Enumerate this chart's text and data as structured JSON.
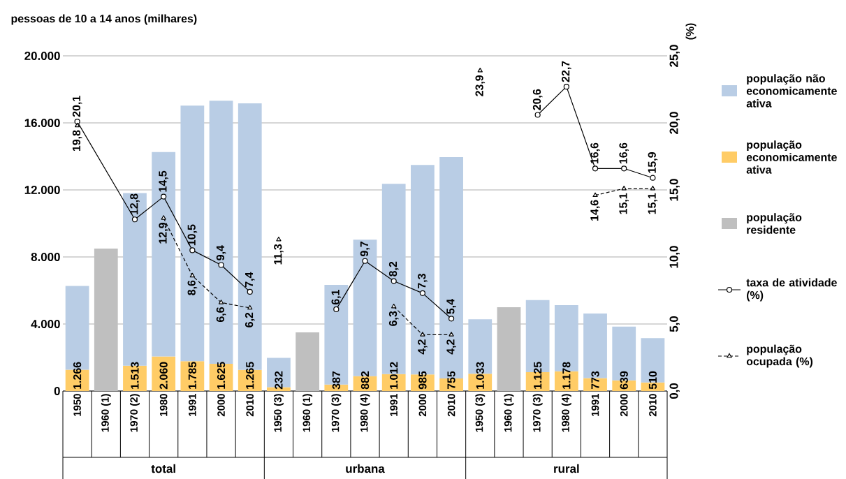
{
  "chart_data": {
    "type": "bar",
    "stacked": true,
    "ylabel": "pessoas de 10 a 14 anos (milhares)",
    "y2label": "(%)",
    "categories": [
      "1950",
      "1960 (1)",
      "1970 (2)",
      "1980",
      "1991",
      "2000",
      "2010",
      "1950 (3)",
      "1960 (1)",
      "1970 (3)",
      "1980 (4)",
      "1991",
      "2000",
      "2010",
      "1950 (3)",
      "1960 (1)",
      "1970 (3)",
      "1980 (4)",
      "1991",
      "2000",
      "2010"
    ],
    "annotations": [
      "total",
      "urbana",
      "rural"
    ],
    "ylim": [
      0,
      20000
    ],
    "yticks": [
      0,
      {
        "value": 4000,
        "label": "4.000"
      },
      {
        "value": 8000,
        "label": "8.000"
      },
      {
        "value": 12000,
        "label": "12.000"
      },
      {
        "value": 16000,
        "label": "16.000"
      },
      {
        "value": 20000,
        "label": "20.000"
      }
    ],
    "y2lim": [
      0,
      25
    ],
    "y2ticks": [
      {
        "value": 0,
        "label": "0,0"
      },
      {
        "value": 5,
        "label": "5,0"
      },
      {
        "value": 10,
        "label": "10,0"
      },
      {
        "value": 15,
        "label": "15,0"
      },
      {
        "value": 20,
        "label": "20,0"
      },
      {
        "value": 25,
        "label": "25,0"
      }
    ],
    "grid": "y",
    "legend": "right",
    "series": [
      {
        "name": "população economicamente ativa",
        "type": "bar",
        "color": "#ffcc66",
        "values": [
          1266,
          null,
          1513,
          2060,
          1785,
          1625,
          1265,
          232,
          null,
          387,
          882,
          1012,
          985,
          755,
          1033,
          null,
          1125,
          1178,
          773,
          639,
          510
        ],
        "value_labels": [
          "1.266",
          null,
          "1.513",
          "2.060",
          "1.785",
          "1.625",
          "1.265",
          "232",
          null,
          "387",
          "882",
          "1.012",
          "985",
          "755",
          "1.033",
          null,
          "1.125",
          "1.178",
          "773",
          "639",
          "510"
        ]
      },
      {
        "name": "população não economicamente ativa",
        "type": "bar",
        "color": "#b9cde5",
        "values": [
          5000,
          null,
          10300,
          12200,
          15250,
          15700,
          15900,
          1750,
          null,
          5950,
          8150,
          11350,
          12500,
          13200,
          3250,
          null,
          4300,
          3950,
          3850,
          3200,
          2650
        ]
      },
      {
        "name": "população residente",
        "type": "bar",
        "color": "#bfbfbf",
        "values": [
          null,
          8500,
          null,
          null,
          null,
          null,
          null,
          null,
          3500,
          null,
          null,
          null,
          null,
          null,
          null,
          5000,
          null,
          null,
          null,
          null,
          null
        ]
      },
      {
        "name": "taxa de atividade (%)",
        "type": "line",
        "axis": "y2",
        "color": "#000000",
        "marker": "circle",
        "line_style": "solid",
        "values": [
          20.1,
          null,
          12.8,
          14.5,
          10.5,
          9.4,
          7.4,
          null,
          null,
          null,
          null,
          null,
          null,
          null,
          null,
          null,
          null,
          null,
          null,
          null,
          null
        ],
        "value_labels": [
          "20,1",
          null,
          "12,8",
          "14,5",
          "10,5",
          "9,4",
          "7,4",
          null,
          null,
          null,
          null,
          null,
          null,
          null,
          null,
          null,
          null,
          null,
          null,
          null,
          null
        ]
      },
      {
        "type": "line",
        "axis": "y2",
        "color": "#000000",
        "marker": "circle",
        "line_style": "solid",
        "values": [
          null,
          null,
          null,
          null,
          null,
          null,
          null,
          null,
          null,
          6.1,
          9.7,
          8.2,
          7.3,
          5.4,
          null,
          null,
          null,
          null,
          null,
          null,
          null
        ],
        "value_labels": [
          null,
          null,
          null,
          null,
          null,
          null,
          null,
          null,
          null,
          "6,1",
          "9,7",
          "8,2",
          "7,3",
          "5,4",
          null,
          null,
          null,
          null,
          null,
          null,
          null
        ]
      },
      {
        "type": "line",
        "axis": "y2",
        "color": "#000000",
        "marker": "circle",
        "line_style": "solid",
        "values": [
          null,
          null,
          null,
          null,
          null,
          null,
          null,
          null,
          null,
          null,
          null,
          null,
          null,
          null,
          null,
          null,
          20.6,
          22.7,
          16.6,
          16.6,
          15.9
        ],
        "value_labels": [
          null,
          null,
          null,
          null,
          null,
          null,
          null,
          null,
          null,
          null,
          null,
          null,
          null,
          null,
          null,
          null,
          "20,6",
          "22,7",
          "16,6",
          "16,6",
          "15,9"
        ]
      },
      {
        "name": "população ocupada (%)",
        "type": "line",
        "axis": "y2",
        "color": "#000000",
        "marker": "triangle",
        "line_style": "dashed",
        "values": [
          null,
          null,
          null,
          12.9,
          8.6,
          6.6,
          6.2,
          null,
          null,
          null,
          null,
          null,
          null,
          null,
          null,
          null,
          null,
          null,
          null,
          null,
          null
        ],
        "value_labels": [
          null,
          null,
          null,
          "12,9",
          "8,6",
          "6,6",
          "6,2",
          null,
          null,
          null,
          null,
          null,
          null,
          null,
          null,
          null,
          null,
          null,
          null,
          null,
          null
        ]
      },
      {
        "type": "line",
        "axis": "y2",
        "color": "#000000",
        "marker": "triangle",
        "line_style": "dashed",
        "values": [
          null,
          null,
          null,
          null,
          null,
          null,
          null,
          null,
          null,
          null,
          null,
          6.3,
          4.2,
          4.2,
          null,
          null,
          null,
          null,
          null,
          null,
          null
        ],
        "value_labels": [
          null,
          null,
          null,
          null,
          null,
          null,
          null,
          null,
          null,
          null,
          null,
          "6,3",
          "4,2",
          "4,2",
          null,
          null,
          null,
          null,
          null,
          null,
          null
        ]
      },
      {
        "type": "line",
        "axis": "y2",
        "color": "#000000",
        "marker": "triangle",
        "line_style": "dashed",
        "values": [
          null,
          null,
          null,
          null,
          null,
          null,
          null,
          null,
          null,
          null,
          null,
          null,
          null,
          null,
          null,
          null,
          null,
          null,
          14.6,
          15.1,
          15.1
        ],
        "value_labels": [
          null,
          null,
          null,
          null,
          null,
          null,
          null,
          null,
          null,
          null,
          null,
          null,
          null,
          null,
          null,
          null,
          null,
          null,
          "14,6",
          "15,1",
          "15,1"
        ]
      },
      {
        "type": "scatter",
        "axis": "y2",
        "color": "#000000",
        "marker": "triangle",
        "values": [
          19.8,
          null,
          null,
          null,
          null,
          null,
          null,
          11.3,
          null,
          null,
          null,
          null,
          null,
          null,
          23.9,
          null,
          null,
          null,
          null,
          null,
          null
        ],
        "value_labels": [
          "19,8",
          null,
          null,
          null,
          null,
          null,
          null,
          "11,3",
          null,
          null,
          null,
          null,
          null,
          null,
          "23,9",
          null,
          null,
          null,
          null,
          null,
          null
        ]
      }
    ]
  }
}
